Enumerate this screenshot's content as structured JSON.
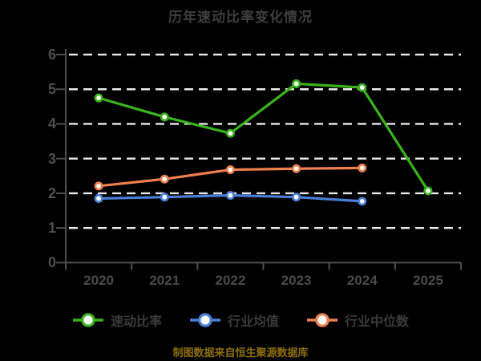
{
  "title": "历年速动比率变化情况",
  "caption": "制图数据来自恒生聚源数据库",
  "colors": {
    "background": "#000000",
    "title_text": "#3e3e3e",
    "axis_line": "#4f4f4f",
    "tick_label": "#4f4f4f",
    "gridline": "#ebebeb",
    "legend_label": "#3a3a3a",
    "caption_text": "#8c6e0a",
    "marker_fill": "#ffffff"
  },
  "chart_data": {
    "type": "line",
    "title": "历年速动比率变化情况",
    "x": [
      "2020",
      "2021",
      "2022",
      "2023",
      "2024",
      "2025"
    ],
    "series": [
      {
        "key": "quick-ratio",
        "name": "速动比率",
        "color": "#3bb31c",
        "values": [
          4.75,
          4.2,
          3.73,
          5.16,
          5.05,
          2.07
        ]
      },
      {
        "key": "industry-avg",
        "name": "行业均值",
        "color": "#4a7fd9",
        "values": [
          1.85,
          1.89,
          1.94,
          1.89,
          1.77,
          null
        ]
      },
      {
        "key": "industry-median",
        "name": "行业中位数",
        "color": "#f07f4e",
        "values": [
          2.21,
          2.41,
          2.68,
          2.71,
          2.73,
          null
        ]
      }
    ],
    "ylim": [
      0,
      6
    ],
    "yticks": [
      0,
      1,
      2,
      3,
      4,
      5,
      6
    ],
    "grid": "horizontal dashed, no line at 0",
    "legend_position": "bottom",
    "marker": "circle, white fill, colored ring"
  }
}
